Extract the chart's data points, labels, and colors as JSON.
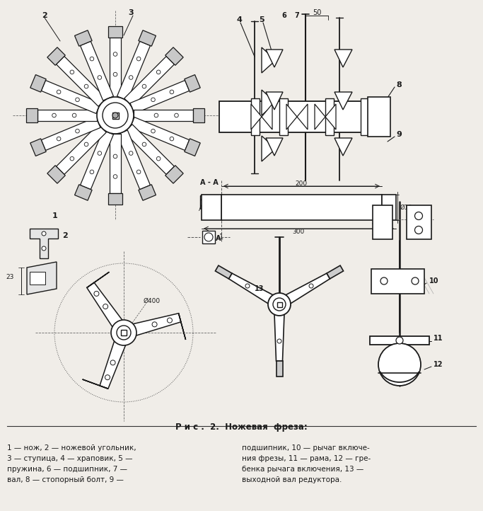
{
  "title": "Р и с .  2.  Ножевая  фреза:",
  "caption_left": "1 — нож, 2 — ножевой угольник,\n3 — ступица, 4 — храповик, 5 —\nпружина, 6 — подшипник, 7 —\nвал, 8 — стопорный болт, 9 —",
  "caption_right": "подшипник, 10 — рычаг включе-\nния фрезы, 11 — рама, 12 — гре-\nбенка рычага включения, 13 —\nвыходной вал редуктора.",
  "bg_color": "#f0ede8",
  "line_color": "#1a1a1a"
}
